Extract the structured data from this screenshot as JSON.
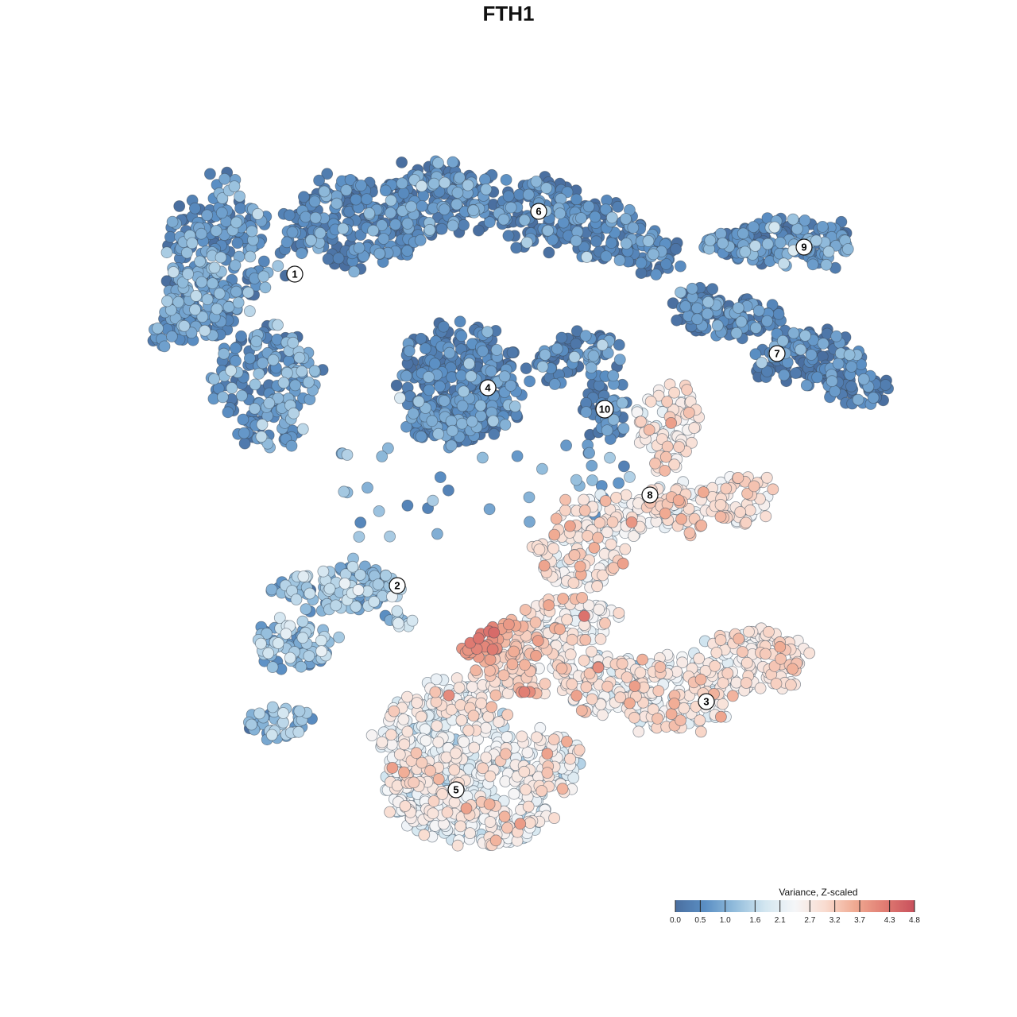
{
  "chart_data": {
    "type": "scatter",
    "title": "FTH1",
    "grid": false,
    "legend_placement": "bottom-right",
    "colorbar": {
      "title": "Variance, Z-scaled",
      "ticks": [
        "0.0",
        "0.5",
        "1.0",
        "1.6",
        "2.1",
        "2.7",
        "3.2",
        "3.7",
        "4.3",
        "4.8"
      ],
      "range": [
        0.0,
        4.8
      ],
      "colors": [
        "#4a6fa0",
        "#5b8fc4",
        "#93bddc",
        "#d3e6f0",
        "#f5f6f8",
        "#f9dcd0",
        "#f0aa92",
        "#e07c72",
        "#c8505c"
      ]
    },
    "clusters": [
      {
        "label": "1",
        "typical_value": 0.6
      },
      {
        "label": "2",
        "typical_value": 1.2
      },
      {
        "label": "3",
        "typical_value": 2.6
      },
      {
        "label": "4",
        "typical_value": 0.3
      },
      {
        "label": "5",
        "typical_value": 2.3
      },
      {
        "label": "6",
        "typical_value": 0.4
      },
      {
        "label": "7",
        "typical_value": 0.3
      },
      {
        "label": "8",
        "typical_value": 2.7
      },
      {
        "label": "9",
        "typical_value": 0.5
      },
      {
        "label": "10",
        "typical_value": 0.4
      }
    ]
  }
}
